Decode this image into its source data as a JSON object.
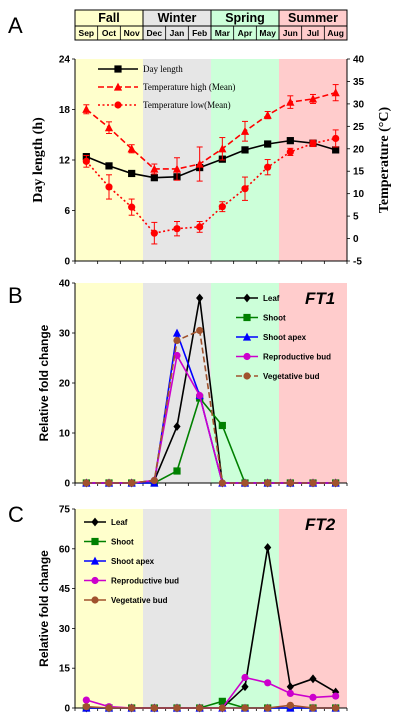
{
  "seasons": [
    {
      "name": "Fall",
      "color": "#ffffcc"
    },
    {
      "name": "Winter",
      "color": "#e6e6e6"
    },
    {
      "name": "Spring",
      "color": "#ccffd9"
    },
    {
      "name": "Summer",
      "color": "#ffcccc"
    }
  ],
  "months": [
    "Sep",
    "Oct",
    "Nov",
    "Dec",
    "Jan",
    "Feb",
    "Mar",
    "Apr",
    "May",
    "Jun",
    "Jul",
    "Aug"
  ],
  "chart_data": [
    {
      "panel": "A",
      "type": "line",
      "ylabel": "Day length (h)",
      "ylabel_right": "Temperature (°C)",
      "ylim": [
        0,
        24
      ],
      "yticks": [
        "0",
        "6",
        "12",
        "18",
        "24"
      ],
      "ylim_right": [
        -5,
        40
      ],
      "yticks_right": [
        "-5",
        "0",
        "5",
        "10",
        "15",
        "20",
        "25",
        "30",
        "35",
        "40"
      ],
      "x": [
        "Sep",
        "Oct",
        "Nov",
        "Dec",
        "Jan",
        "Feb",
        "Mar",
        "Apr",
        "May",
        "Jun",
        "Jul",
        "Aug"
      ],
      "series": [
        {
          "name": "Day length",
          "axis": "left",
          "color": "#000000",
          "marker": "square",
          "dash": "solid",
          "values": [
            12.4,
            11.3,
            10.4,
            9.9,
            10.0,
            11.1,
            12.1,
            13.2,
            13.9,
            14.3,
            14.0,
            13.2
          ]
        },
        {
          "name": "Temperature high (Mean)",
          "axis": "right",
          "color": "#ff0000",
          "marker": "triangle",
          "dash": "dash",
          "values": [
            28.8,
            24.7,
            20.0,
            15.5,
            15.5,
            16.6,
            20.0,
            23.9,
            27.5,
            30.4,
            31.1,
            32.5
          ],
          "errors": [
            1.0,
            1.3,
            0.9,
            1.1,
            2.5,
            3.8,
            2.5,
            2.2,
            0.8,
            1.4,
            1.0,
            1.8
          ]
        },
        {
          "name": "Temperature low(Mean)",
          "axis": "right",
          "color": "#ff0000",
          "marker": "circle",
          "dash": "dot",
          "values": [
            17.2,
            11.5,
            7.0,
            1.2,
            2.2,
            2.6,
            7.1,
            11.1,
            15.9,
            19.3,
            21.2,
            22.3
          ],
          "errors": [
            1.3,
            2.7,
            1.8,
            2.4,
            1.6,
            1.2,
            1.1,
            2.6,
            1.7,
            0.8,
            0.7,
            1.9
          ]
        }
      ]
    },
    {
      "panel": "B",
      "type": "line",
      "gene": "FT1",
      "ylabel": "Relative fold change",
      "ylim": [
        0,
        40
      ],
      "yticks": [
        "0",
        "10",
        "20",
        "30",
        "40"
      ],
      "x": [
        "Sep",
        "Oct",
        "Nov",
        "Dec",
        "Jan",
        "Feb",
        "Mar",
        "Apr",
        "May",
        "Jun",
        "Jul",
        "Aug"
      ],
      "series": [
        {
          "name": "Leaf",
          "color": "#000000",
          "marker": "diamond",
          "dash": "solid",
          "values": [
            0,
            0,
            0,
            0.5,
            11.3,
            37.0,
            0,
            0,
            0,
            0,
            0,
            0
          ]
        },
        {
          "name": "Shoot",
          "color": "#008000",
          "marker": "square",
          "dash": "solid",
          "values": [
            0,
            0,
            0,
            0,
            2.4,
            17.0,
            11.5,
            0,
            0,
            0,
            0,
            0
          ]
        },
        {
          "name": "Shoot apex",
          "color": "#0000ff",
          "marker": "triangle",
          "dash": "solid",
          "values": [
            0,
            0,
            0,
            0,
            30.0,
            17.5,
            0,
            0,
            0,
            0,
            0,
            0
          ]
        },
        {
          "name": "Reproductive bud",
          "color": "#cc00cc",
          "marker": "circle",
          "dash": "solid",
          "values": [
            0,
            0,
            0,
            0.5,
            25.5,
            17.5,
            0,
            0,
            0,
            0,
            0,
            0
          ]
        },
        {
          "name": "Vegetative bud",
          "color": "#a0522d",
          "marker": "circle",
          "dash": "dash",
          "values": [
            0,
            0,
            0,
            0.5,
            28.5,
            30.5,
            0,
            0,
            0,
            0,
            0,
            0
          ]
        }
      ]
    },
    {
      "panel": "C",
      "type": "line",
      "gene": "FT2",
      "ylabel": "Relative fold change",
      "ylim": [
        0,
        75
      ],
      "yticks": [
        "0",
        "15",
        "30",
        "45",
        "60",
        "75"
      ],
      "x": [
        "Sep",
        "Oct",
        "Nov",
        "Dec",
        "Jan",
        "Feb",
        "Mar",
        "Apr",
        "May",
        "Jun",
        "Jul",
        "Aug"
      ],
      "series": [
        {
          "name": "Leaf",
          "color": "#000000",
          "marker": "diamond",
          "dash": "solid",
          "values": [
            0,
            0,
            0,
            0,
            0,
            0,
            0,
            8.0,
            60.5,
            8.0,
            11.0,
            6.0
          ]
        },
        {
          "name": "Shoot",
          "color": "#008000",
          "marker": "square",
          "dash": "solid",
          "values": [
            0,
            0,
            0,
            0,
            0,
            0,
            2.5,
            0,
            0,
            0,
            0,
            0
          ]
        },
        {
          "name": "Shoot apex",
          "color": "#0000ff",
          "marker": "triangle",
          "dash": "solid",
          "values": [
            0,
            0,
            0,
            0,
            0,
            0,
            0,
            0,
            0,
            0,
            0,
            0
          ]
        },
        {
          "name": "Reproductive bud",
          "color": "#cc00cc",
          "marker": "circle",
          "dash": "solid",
          "values": [
            3.0,
            0.5,
            0,
            0,
            0,
            0,
            0,
            11.5,
            9.5,
            5.5,
            4.0,
            4.5
          ]
        },
        {
          "name": "Vegetative bud",
          "color": "#a0522d",
          "marker": "circle",
          "dash": "solid",
          "values": [
            0.5,
            0,
            0,
            0,
            0,
            0,
            0,
            0,
            0,
            1.0,
            0,
            0
          ]
        }
      ]
    }
  ]
}
